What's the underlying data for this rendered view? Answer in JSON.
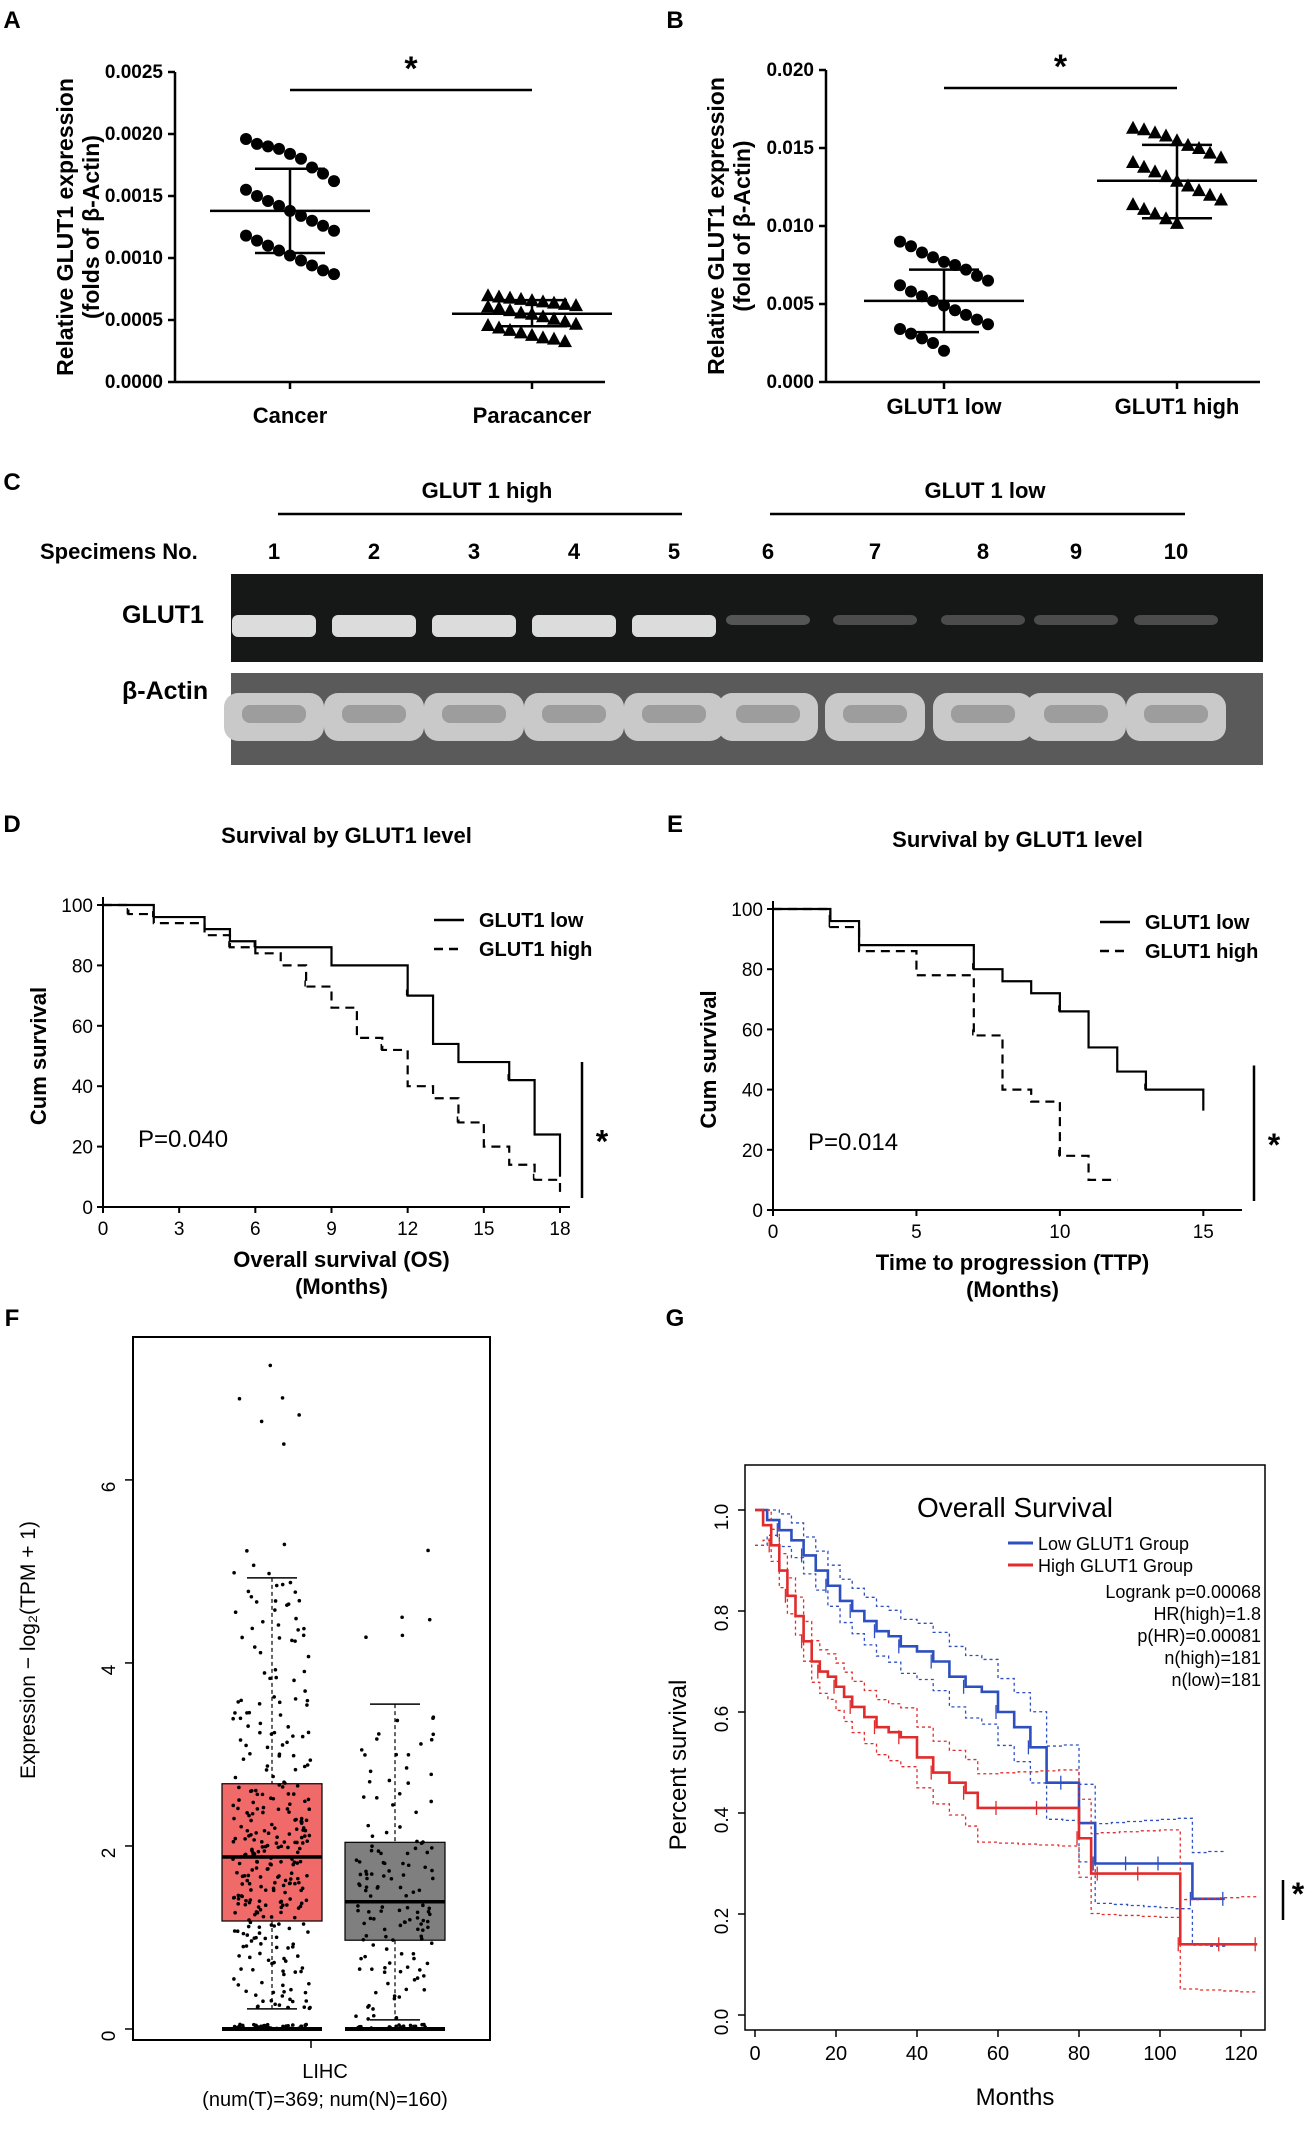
{
  "chart_data": [
    {
      "panel": "A",
      "type": "scatter",
      "ylabel": [
        "Relative GLUT1 expression",
        "(folds of β-Actin)"
      ],
      "ylim": [
        0,
        0.0025
      ],
      "yticks": [
        "0.0000",
        "0.0005",
        "0.0010",
        "0.0015",
        "0.0020",
        "0.0025"
      ],
      "categories": [
        "Cancer",
        "Paracancer"
      ],
      "series": [
        {
          "name": "Cancer",
          "marker": "circle",
          "mean": 0.00138,
          "sd_low": 0.00104,
          "sd_high": 0.00172,
          "values": [
            0.00196,
            0.00192,
            0.0019,
            0.00188,
            0.00184,
            0.0018,
            0.00173,
            0.00168,
            0.00162,
            0.00155,
            0.0015,
            0.00146,
            0.00142,
            0.00138,
            0.00134,
            0.0013,
            0.00126,
            0.00122,
            0.00118,
            0.00114,
            0.0011,
            0.00106,
            0.00102,
            0.00098,
            0.00094,
            0.0009,
            0.00087
          ]
        },
        {
          "name": "Paracancer",
          "marker": "triangle",
          "mean": 0.00055,
          "sd_low": 0.00045,
          "sd_high": 0.00066,
          "values": [
            0.0007,
            0.00069,
            0.00068,
            0.00067,
            0.00066,
            0.00065,
            0.00064,
            0.00063,
            0.00062,
            0.00061,
            0.0006,
            0.00058,
            0.00056,
            0.00055,
            0.00053,
            0.00051,
            0.00049,
            0.00047,
            0.00046,
            0.00044,
            0.00042,
            0.0004,
            0.00038,
            0.00036,
            0.00035,
            0.00033
          ]
        }
      ],
      "significance": "*"
    },
    {
      "panel": "B",
      "type": "scatter",
      "ylabel": [
        "Relative GLUT1 expression",
        "(fold of β-Actin)"
      ],
      "ylim": [
        0,
        0.02
      ],
      "yticks": [
        "0.000",
        "0.005",
        "0.010",
        "0.015",
        "0.020"
      ],
      "categories": [
        "GLUT1 low",
        "GLUT1 high"
      ],
      "series": [
        {
          "name": "GLUT1 low",
          "marker": "circle",
          "mean": 0.0052,
          "sd_low": 0.0032,
          "sd_high": 0.0072,
          "values": [
            0.009,
            0.0087,
            0.0083,
            0.008,
            0.0077,
            0.0075,
            0.0072,
            0.0068,
            0.0065,
            0.0062,
            0.0058,
            0.0055,
            0.0052,
            0.0049,
            0.0046,
            0.0043,
            0.004,
            0.0037,
            0.0034,
            0.0031,
            0.0028,
            0.0025,
            0.002
          ]
        },
        {
          "name": "GLUT1 high",
          "marker": "triangle",
          "mean": 0.0129,
          "sd_low": 0.0105,
          "sd_high": 0.0152,
          "values": [
            0.0163,
            0.0162,
            0.016,
            0.0158,
            0.0155,
            0.0152,
            0.015,
            0.0147,
            0.0144,
            0.0141,
            0.0138,
            0.0135,
            0.0132,
            0.0129,
            0.0126,
            0.0123,
            0.012,
            0.0117,
            0.0114,
            0.0111,
            0.0108,
            0.0105,
            0.0102
          ]
        }
      ],
      "significance": "*"
    },
    {
      "panel": "C",
      "type": "gel",
      "group_high": "GLUT 1 high",
      "group_low": "GLUT 1 low",
      "specimen_label": "Specimens No.",
      "lanes": [
        "1",
        "2",
        "3",
        "4",
        "5",
        "6",
        "7",
        "8",
        "9",
        "10"
      ],
      "rows": [
        {
          "name": "GLUT1",
          "intensity": [
            1,
            1,
            1,
            1,
            1,
            0.25,
            0.2,
            0.2,
            0.2,
            0.2
          ]
        },
        {
          "name": "β-Actin",
          "intensity": [
            1,
            1,
            1,
            1,
            1,
            1,
            1,
            1,
            1,
            1
          ]
        }
      ]
    },
    {
      "panel": "D",
      "type": "line",
      "title": "Survival by GLUT1 level",
      "xlabel": "Overall survival (OS)",
      "xlabel2": "(Months)",
      "ylabel": "Cum survival",
      "xlim": [
        0,
        18
      ],
      "ylim": [
        0,
        100
      ],
      "xticks": [
        "0",
        "3",
        "6",
        "9",
        "12",
        "15",
        "18"
      ],
      "yticks": [
        "0",
        "20",
        "40",
        "60",
        "80",
        "100"
      ],
      "annotation": "P=0.040",
      "significance": "*",
      "series": [
        {
          "name": "GLUT1 low",
          "style": "solid",
          "x": [
            0,
            2,
            4,
            5,
            6,
            9,
            10,
            12,
            13,
            14,
            16,
            17,
            18
          ],
          "y": [
            100,
            96,
            92,
            88,
            86,
            80,
            80,
            70,
            54,
            48,
            42,
            24,
            10
          ]
        },
        {
          "name": "GLUT1 high",
          "style": "dashed",
          "x": [
            0,
            1,
            2,
            4,
            5,
            6,
            7,
            8,
            9,
            10,
            11,
            12,
            13,
            14,
            15,
            16,
            17,
            18
          ],
          "y": [
            100,
            97,
            94,
            90,
            86,
            84,
            80,
            73,
            66,
            56,
            52,
            40,
            36,
            28,
            20,
            14,
            9,
            5
          ]
        }
      ]
    },
    {
      "panel": "E",
      "type": "line",
      "title": "Survival by GLUT1 level",
      "xlabel": "Time to progression (TTP)",
      "xlabel2": "(Months)",
      "ylabel": "Cum survival",
      "xlim": [
        0,
        16
      ],
      "ylim": [
        0,
        100
      ],
      "xticks": [
        "0",
        "5",
        "10",
        "15"
      ],
      "yticks": [
        "0",
        "20",
        "40",
        "60",
        "80",
        "100"
      ],
      "annotation": "P=0.014",
      "significance": "*",
      "series": [
        {
          "name": "GLUT1 low",
          "style": "solid",
          "x": [
            0,
            2,
            3,
            6,
            7,
            8,
            9,
            10,
            11,
            12,
            13,
            15
          ],
          "y": [
            100,
            96,
            88,
            88,
            80,
            76,
            72,
            66,
            54,
            46,
            40,
            33
          ]
        },
        {
          "name": "GLUT1 high",
          "style": "dashed",
          "x": [
            0,
            2,
            3,
            5,
            7,
            8,
            9,
            10,
            11,
            12
          ],
          "y": [
            100,
            94,
            86,
            78,
            58,
            40,
            36,
            18,
            10,
            10
          ]
        }
      ]
    },
    {
      "panel": "F",
      "type": "box",
      "ylabel": "Expression − log₂(TPM + 1)",
      "ylim": [
        0,
        7.5
      ],
      "yticks": [
        "0",
        "2",
        "4",
        "6"
      ],
      "xlabel": "LIHC",
      "xlabel2": "(num(T)=369; num(N)=160)",
      "boxes": [
        {
          "name": "T",
          "color": "#f06a6a",
          "q1": 1.18,
          "median": 1.88,
          "q3": 2.68,
          "whisker_low": 0.22,
          "whisker_high": 4.93,
          "max": 7.3,
          "n": 369
        },
        {
          "name": "N",
          "color": "#7f7f7f",
          "q1": 0.97,
          "median": 1.39,
          "q3": 2.04,
          "whisker_low": 0.1,
          "whisker_high": 3.55,
          "max": 5.25,
          "n": 160
        }
      ]
    },
    {
      "panel": "G",
      "type": "line",
      "title": "Overall Survival",
      "xlabel": "Months",
      "ylabel": "Percent survival",
      "xlim": [
        0,
        125
      ],
      "ylim": [
        0,
        1.0
      ],
      "xticks": [
        "0",
        "20",
        "40",
        "60",
        "80",
        "100",
        "120"
      ],
      "yticks": [
        "0.0",
        "0.2",
        "0.4",
        "0.6",
        "0.8",
        "1.0"
      ],
      "legend": [
        "Low GLUT1 Group",
        "High GLUT1 Group"
      ],
      "stats": [
        "Logrank p=0.00068",
        "HR(high)=1.8",
        "p(HR)=0.00081",
        "n(high)=181",
        "n(low)=181"
      ],
      "significance": "*",
      "series": [
        {
          "name": "Low GLUT1 Group",
          "color": "#2e4fc0",
          "x": [
            0,
            3,
            6,
            9,
            12,
            15,
            18,
            21,
            24,
            27,
            30,
            33,
            36,
            40,
            44,
            48,
            52,
            56,
            60,
            64,
            68,
            72,
            76,
            80,
            84,
            88,
            92,
            96,
            100,
            104,
            108,
            112,
            116
          ],
          "y": [
            1.0,
            0.98,
            0.96,
            0.94,
            0.91,
            0.88,
            0.85,
            0.82,
            0.8,
            0.78,
            0.76,
            0.75,
            0.73,
            0.72,
            0.7,
            0.67,
            0.65,
            0.64,
            0.6,
            0.57,
            0.53,
            0.46,
            0.46,
            0.38,
            0.3,
            0.3,
            0.3,
            0.3,
            0.3,
            0.3,
            0.23,
            0.23,
            0.23
          ]
        },
        {
          "name": "High GLUT1 Group",
          "color": "#e02c2c",
          "x": [
            0,
            2,
            4,
            6,
            8,
            10,
            12,
            14,
            16,
            18,
            20,
            22,
            24,
            27,
            30,
            33,
            36,
            40,
            44,
            48,
            52,
            55,
            60,
            65,
            70,
            75,
            80,
            83,
            85,
            90,
            95,
            100,
            105,
            110,
            115,
            120,
            124
          ],
          "y": [
            1.0,
            0.97,
            0.93,
            0.88,
            0.83,
            0.79,
            0.74,
            0.7,
            0.68,
            0.67,
            0.65,
            0.63,
            0.61,
            0.59,
            0.57,
            0.56,
            0.55,
            0.51,
            0.48,
            0.46,
            0.44,
            0.41,
            0.41,
            0.41,
            0.41,
            0.41,
            0.35,
            0.28,
            0.28,
            0.28,
            0.28,
            0.28,
            0.14,
            0.14,
            0.14,
            0.14,
            0.14
          ]
        }
      ]
    }
  ]
}
